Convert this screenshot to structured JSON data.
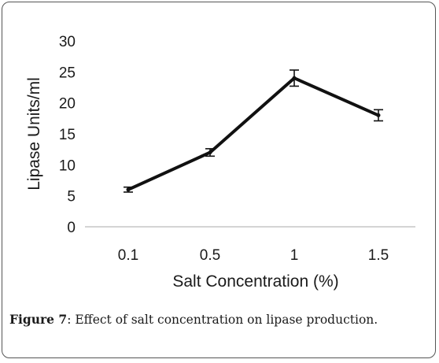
{
  "chart_data": {
    "type": "line",
    "categories": [
      "0.1",
      "0.5",
      "1",
      "1.5"
    ],
    "series": [
      {
        "values": [
          6,
          12,
          24,
          18
        ],
        "errors": [
          0.4,
          0.6,
          1.3,
          0.9
        ]
      }
    ],
    "xlabel": "Salt Concentration (%)",
    "ylabel": "Lipase Units/ml",
    "ylim": [
      0,
      30
    ],
    "yticks": [
      "0",
      "5",
      "10",
      "15",
      "20",
      "25",
      "30"
    ],
    "grid": false,
    "line_color": "#111111"
  },
  "caption": {
    "label": "Figure 7",
    "text": ": Effect of salt concentration on lipase production."
  }
}
